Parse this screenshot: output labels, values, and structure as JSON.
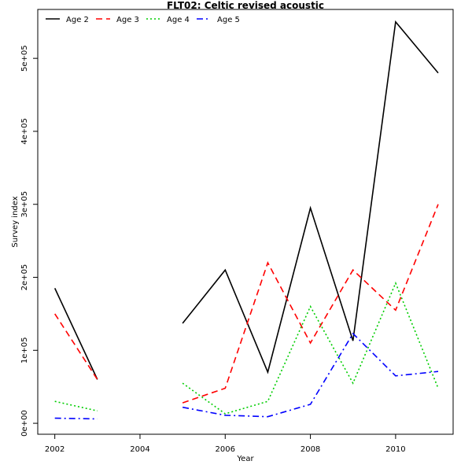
{
  "chart_data": {
    "type": "line",
    "title": "FLT02: Celtic  revised   acoustic",
    "xlabel": "Year",
    "ylabel": "Survey index",
    "xlim": [
      2001.6,
      2011.35
    ],
    "ylim": [
      -15000,
      567000
    ],
    "x_ticks": [
      2002,
      2004,
      2006,
      2008,
      2010
    ],
    "x_tick_labels": [
      "2002",
      "2004",
      "2006",
      "2008",
      "2010"
    ],
    "y_ticks": [
      0,
      100000,
      200000,
      300000,
      400000,
      500000
    ],
    "y_tick_labels": [
      "0e+00",
      "1e+05",
      "2e+05",
      "3e+05",
      "4e+05",
      "5e+05"
    ],
    "legend_position": "top-left",
    "grid": false,
    "x": [
      2002,
      2003,
      2004,
      2005,
      2006,
      2007,
      2008,
      2009,
      2010,
      2011
    ],
    "series": [
      {
        "name": "Age 2",
        "color": "#000000",
        "dash": "",
        "values": [
          185000,
          60000,
          null,
          137000,
          210000,
          70000,
          295000,
          113000,
          550000,
          480000
        ]
      },
      {
        "name": "Age 3",
        "color": "#ff0000",
        "dash": "8,5",
        "values": [
          150000,
          60000,
          null,
          28000,
          48000,
          220000,
          110000,
          210000,
          155000,
          300000
        ]
      },
      {
        "name": "Age 4",
        "color": "#00cd00",
        "dash": "2,3",
        "values": [
          30000,
          17000,
          null,
          55000,
          13000,
          30000,
          160000,
          55000,
          192000,
          48000
        ]
      },
      {
        "name": "Age 5",
        "color": "#0000ff",
        "dash": "8,4,2,4",
        "values": [
          7000,
          6000,
          null,
          22000,
          11000,
          9000,
          26000,
          123000,
          65000,
          71000
        ]
      }
    ]
  }
}
